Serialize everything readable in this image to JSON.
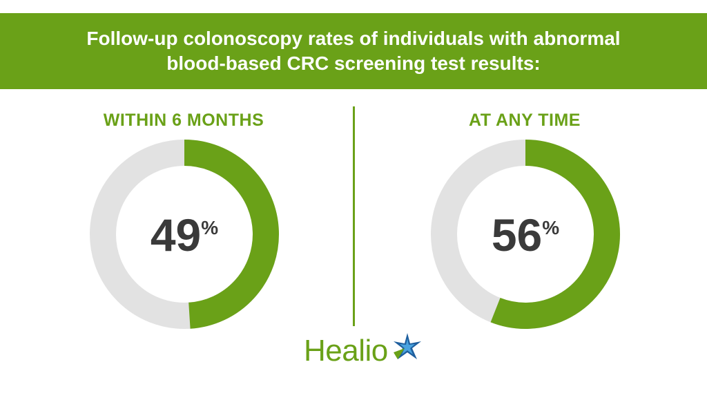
{
  "header": {
    "title": "Follow-up colonoscopy rates of individuals with abnormal blood-based CRC screening test results:"
  },
  "colors": {
    "accent": "#6aa118",
    "track": "#e2e2e2",
    "value_text": "#3a3a3a"
  },
  "chart_data": [
    {
      "type": "pie",
      "title": "WITHIN 6 MONTHS",
      "value": 49,
      "value_label": "49",
      "unit": "%",
      "max": 100
    },
    {
      "type": "pie",
      "title": "AT ANY TIME",
      "value": 56,
      "value_label": "56",
      "unit": "%",
      "max": 100
    }
  ],
  "logo": {
    "text": "Healio",
    "icon": "star-icon"
  }
}
